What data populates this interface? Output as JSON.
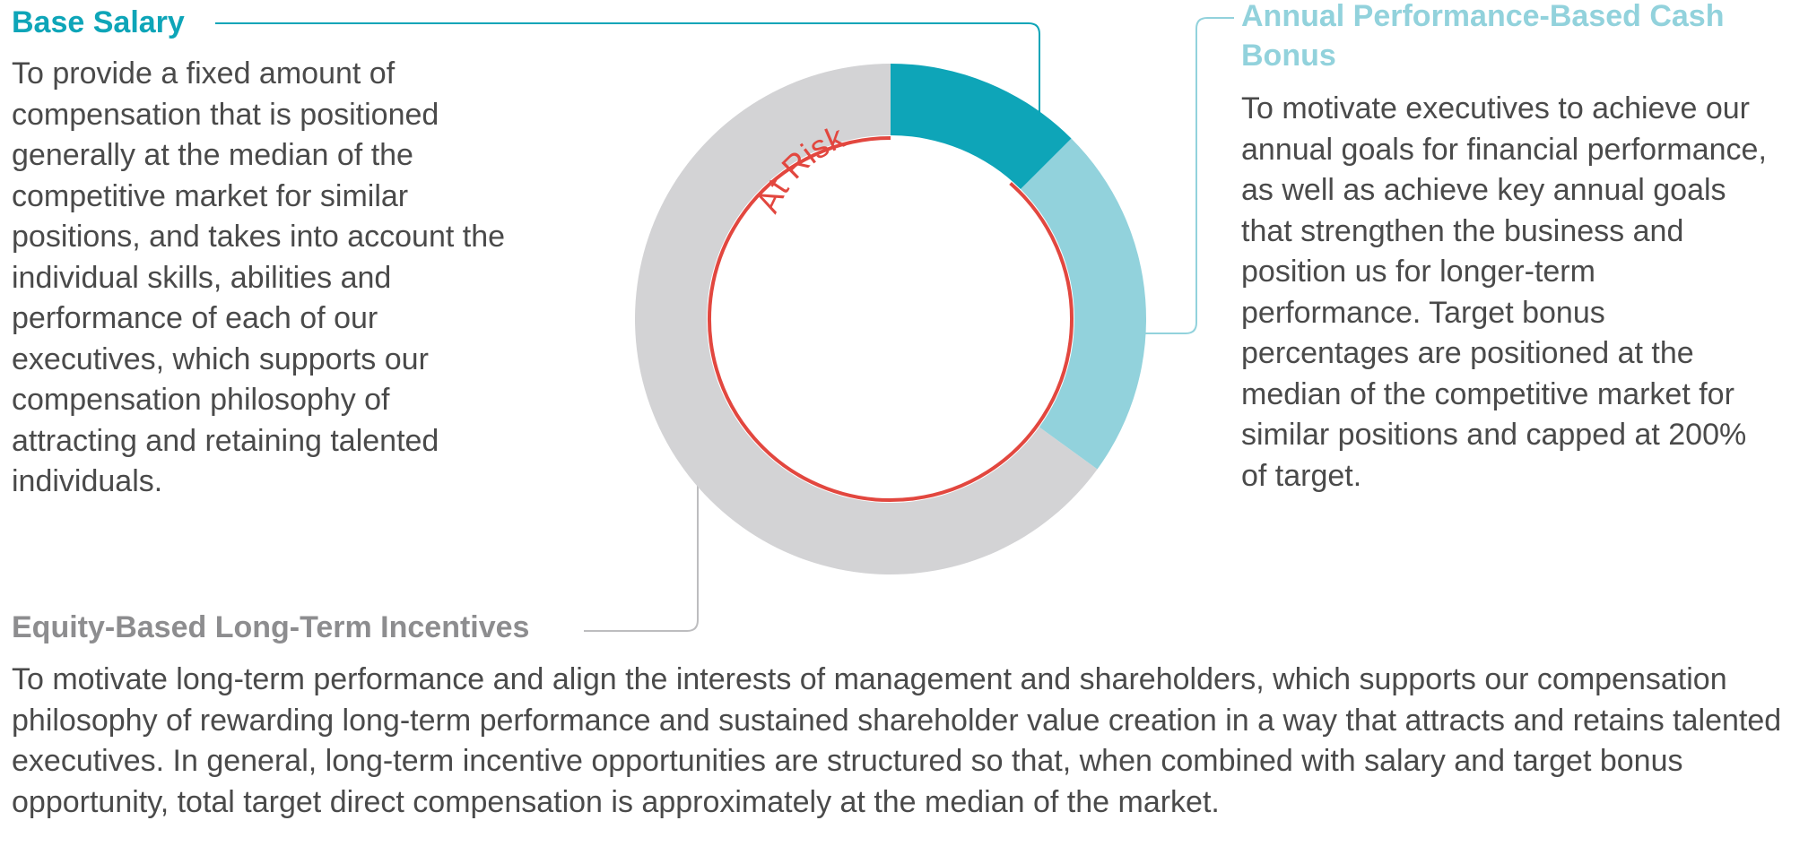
{
  "colors": {
    "base_salary": "#0ea5b8",
    "cash_bonus": "#92d2dc",
    "long_term": "#d3d3d5",
    "at_risk": "#e2473f"
  },
  "diagram_values": {
    "base_salary_fraction": 0.125,
    "cash_bonus_fraction": 0.225,
    "long_term_fraction": 0.65
  },
  "base_salary": {
    "heading": "Base Salary",
    "description": "To provide a fixed amount of compensation that is positioned generally at the median of the competitive market for similar positions, and takes into account the individual skills, abilities and performance of each of our executives, which supports our compensation philosophy of attracting and retaining talented individuals."
  },
  "cash_bonus": {
    "heading": "Annual Performance-Based Cash Bonus",
    "description": "To motivate executives to achieve our annual goals for financial performance, as well as achieve key annual goals that strengthen the business and position us for longer-term performance. Target bonus percentages are positioned at the median of the competitive market for similar positions and capped at 200% of target."
  },
  "long_term": {
    "heading": "Equity-Based Long-Term Incentives",
    "description": "To motivate long-term performance and align the interests of management and shareholders, which supports our compensation philosophy of rewarding long-term performance and sustained shareholder value creation in a way that attracts and retains talented executives. In general, long-term incentive opportunities are structured so that, when combined with salary and target bonus opportunity, total target direct compensation is approximately at the median of the market."
  },
  "at_risk_label": "At Risk"
}
